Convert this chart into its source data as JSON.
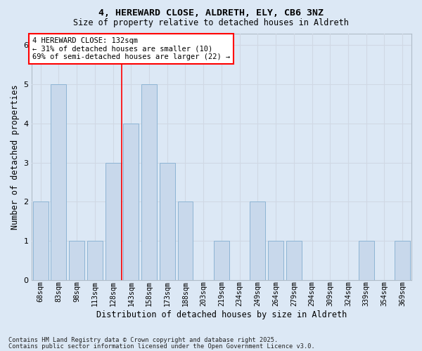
{
  "title_line1": "4, HEREWARD CLOSE, ALDRETH, ELY, CB6 3NZ",
  "title_line2": "Size of property relative to detached houses in Aldreth",
  "xlabel": "Distribution of detached houses by size in Aldreth",
  "ylabel": "Number of detached properties",
  "categories": [
    "68sqm",
    "83sqm",
    "98sqm",
    "113sqm",
    "128sqm",
    "143sqm",
    "158sqm",
    "173sqm",
    "188sqm",
    "203sqm",
    "219sqm",
    "234sqm",
    "249sqm",
    "264sqm",
    "279sqm",
    "294sqm",
    "309sqm",
    "324sqm",
    "339sqm",
    "354sqm",
    "369sqm"
  ],
  "values": [
    2,
    5,
    1,
    1,
    3,
    4,
    5,
    3,
    2,
    0,
    1,
    0,
    2,
    1,
    1,
    0,
    0,
    0,
    1,
    0,
    1
  ],
  "bar_color": "#c8d8eb",
  "bar_edge_color": "#8db4d4",
  "grid_color": "#d0d8e4",
  "background_color": "#dce8f5",
  "fig_background_color": "#dce8f5",
  "annotation_box_text_line1": "4 HEREWARD CLOSE: 132sqm",
  "annotation_box_text_line2": "← 31% of detached houses are smaller (10)",
  "annotation_box_text_line3": "69% of semi-detached houses are larger (22) →",
  "red_line_x": 4.5,
  "ylim": [
    0,
    6.3
  ],
  "yticks": [
    0,
    1,
    2,
    3,
    4,
    5,
    6
  ],
  "footnote_line1": "Contains HM Land Registry data © Crown copyright and database right 2025.",
  "footnote_line2": "Contains public sector information licensed under the Open Government Licence v3.0."
}
